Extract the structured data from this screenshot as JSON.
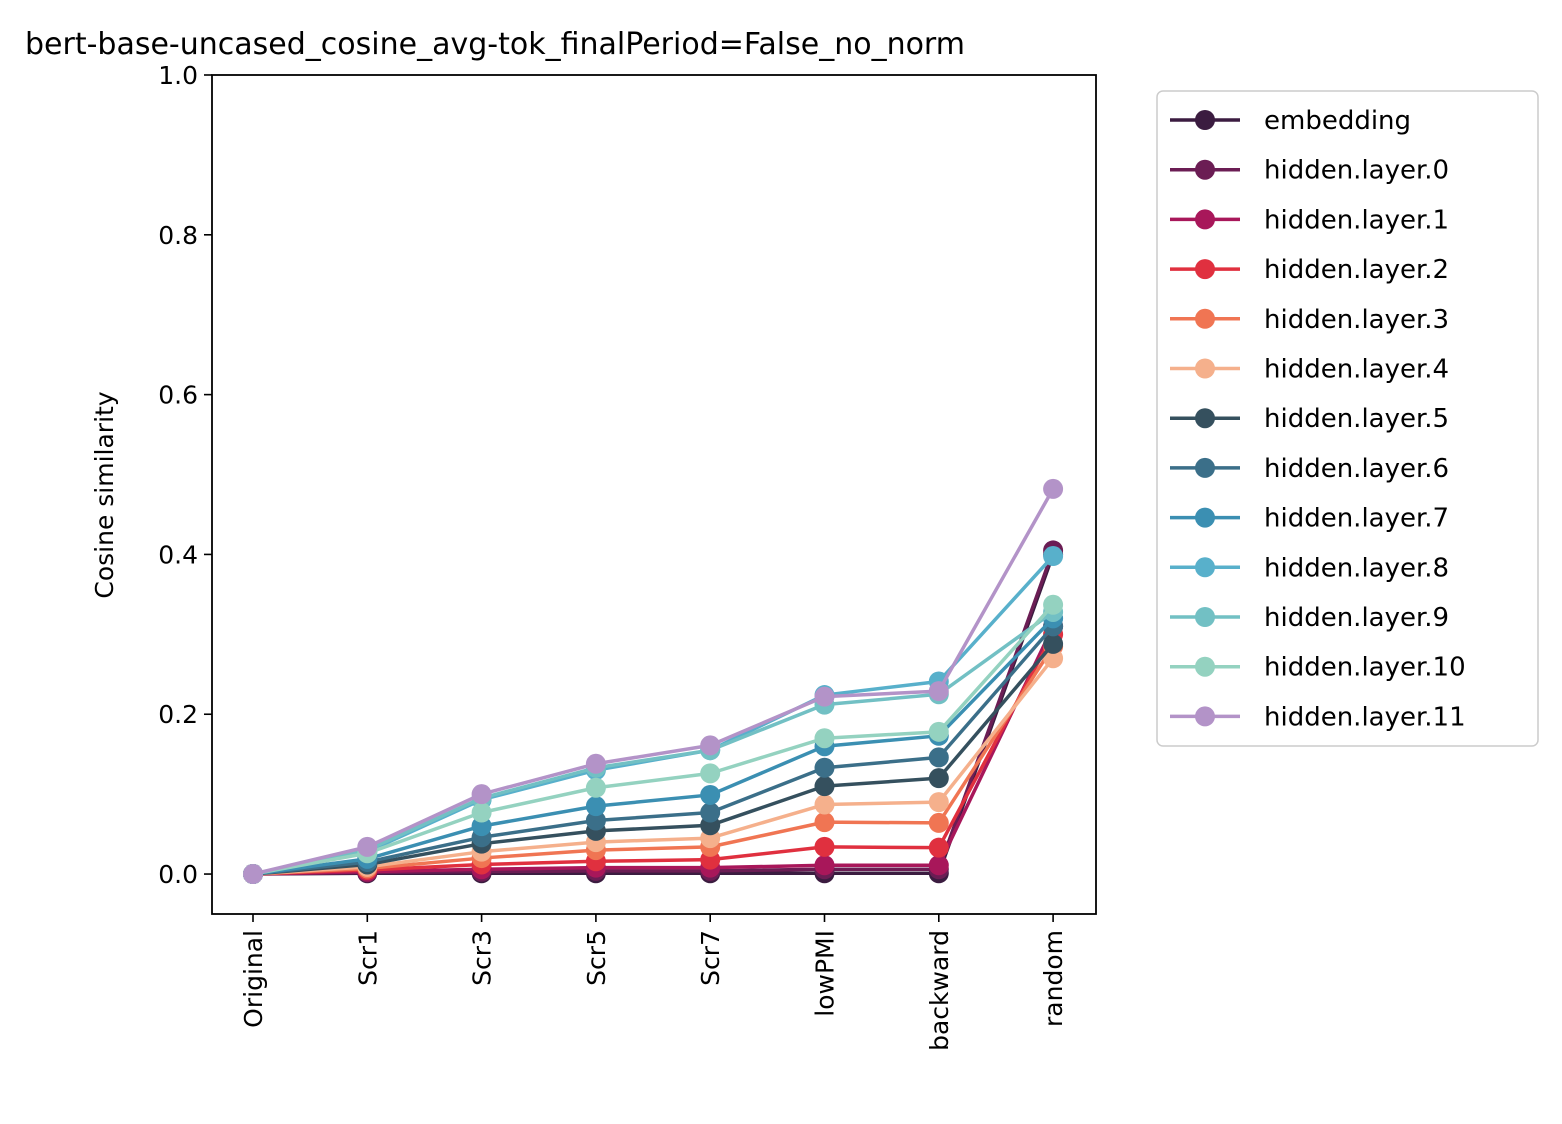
{
  "chart_data": {
    "type": "line",
    "title": "bert-base-uncased_cosine_avg-tok_finalPeriod=False_no_norm",
    "xlabel": "",
    "ylabel": "Cosine similarity",
    "ylim": [
      -0.05,
      1.0
    ],
    "yticks": [
      "0.0",
      "0.2",
      "0.4",
      "0.6",
      "0.8",
      "1.0"
    ],
    "categories": [
      "Original",
      "Scr1",
      "Scr3",
      "Scr5",
      "Scr7",
      "lowPMI",
      "backward",
      "random"
    ],
    "grid": false,
    "legend_position": "outside-right",
    "series": [
      {
        "name": "embedding",
        "color": "#3b1c40",
        "values": [
          0,
          0.001,
          0.001,
          0.001,
          0.001,
          0.001,
          0.001,
          0.4
        ]
      },
      {
        "name": "hidden.layer.0",
        "color": "#6b1d54",
        "values": [
          0,
          0.002,
          0.003,
          0.004,
          0.004,
          0.006,
          0.006,
          0.405
        ]
      },
      {
        "name": "hidden.layer.1",
        "color": "#a8175a",
        "values": [
          0,
          0.003,
          0.006,
          0.008,
          0.008,
          0.011,
          0.011,
          0.31
        ]
      },
      {
        "name": "hidden.layer.2",
        "color": "#e0303f",
        "values": [
          0,
          0.005,
          0.012,
          0.016,
          0.018,
          0.034,
          0.033,
          0.3
        ]
      },
      {
        "name": "hidden.layer.3",
        "color": "#f07553",
        "values": [
          0,
          0.007,
          0.02,
          0.03,
          0.034,
          0.065,
          0.064,
          0.285
        ]
      },
      {
        "name": "hidden.layer.4",
        "color": "#f5b08c",
        "values": [
          0,
          0.009,
          0.028,
          0.04,
          0.045,
          0.087,
          0.09,
          0.27
        ]
      },
      {
        "name": "hidden.layer.5",
        "color": "#35505e",
        "values": [
          0,
          0.012,
          0.038,
          0.054,
          0.061,
          0.11,
          0.12,
          0.288
        ]
      },
      {
        "name": "hidden.layer.6",
        "color": "#3b6f89",
        "values": [
          0,
          0.015,
          0.046,
          0.067,
          0.077,
          0.133,
          0.146,
          0.31
        ]
      },
      {
        "name": "hidden.layer.7",
        "color": "#3b8fb2",
        "values": [
          0,
          0.019,
          0.06,
          0.085,
          0.099,
          0.16,
          0.173,
          0.32
        ]
      },
      {
        "name": "hidden.layer.8",
        "color": "#58b0cb",
        "values": [
          0,
          0.028,
          0.093,
          0.13,
          0.155,
          0.224,
          0.241,
          0.398
        ]
      },
      {
        "name": "hidden.layer.9",
        "color": "#72c0c4",
        "values": [
          0,
          0.03,
          0.095,
          0.133,
          0.155,
          0.212,
          0.225,
          0.328
        ]
      },
      {
        "name": "hidden.layer.10",
        "color": "#94d2c0",
        "values": [
          0,
          0.026,
          0.077,
          0.108,
          0.126,
          0.17,
          0.178,
          0.337
        ]
      },
      {
        "name": "hidden.layer.11",
        "color": "#b393c8",
        "values": [
          0,
          0.034,
          0.1,
          0.138,
          0.161,
          0.222,
          0.229,
          0.482
        ]
      }
    ]
  }
}
